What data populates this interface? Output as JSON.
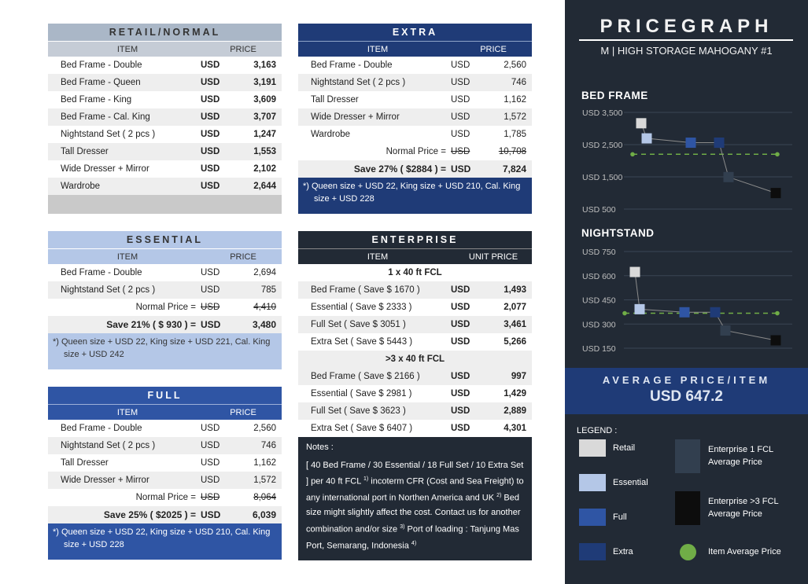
{
  "currency": "USD",
  "col_item": "ITEM",
  "col_price": "PRICE",
  "col_unit_price": "UNIT PRICE",
  "retail": {
    "title": "RETAIL/NORMAL",
    "rows": [
      {
        "name": "Bed Frame - Double",
        "price": "3,163"
      },
      {
        "name": "Bed Frame - Queen",
        "price": "3,191"
      },
      {
        "name": "Bed Frame - King",
        "price": "3,609"
      },
      {
        "name": "Bed Frame - Cal. King",
        "price": "3,707"
      },
      {
        "name": "Nightstand Set ( 2 pcs )",
        "price": "1,247"
      },
      {
        "name": "Tall Dresser",
        "price": "1,553"
      },
      {
        "name": "Wide Dresser + Mirror",
        "price": "2,102"
      },
      {
        "name": "Wardrobe",
        "price": "2,644"
      }
    ]
  },
  "extra": {
    "title": "EXTRA",
    "rows": [
      {
        "name": "Bed Frame - Double",
        "price": "2,560"
      },
      {
        "name": "Nightstand Set ( 2 pcs )",
        "price": "746"
      },
      {
        "name": "Tall Dresser",
        "price": "1,162"
      },
      {
        "name": "Wide Dresser + Mirror",
        "price": "1,572"
      },
      {
        "name": "Wardrobe",
        "price": "1,785"
      }
    ],
    "normal_label": "Normal Price =",
    "normal_value": "10,708",
    "save_label": "Save 27%  ( $2884 ) =",
    "save_value": "7,824",
    "note": "*) Queen size + USD 22, King size + USD 210, Cal. King size + USD 228"
  },
  "essential": {
    "title": "ESSENTIAL",
    "rows": [
      {
        "name": "Bed Frame - Double",
        "price": "2,694"
      },
      {
        "name": "Nightstand Set ( 2 pcs )",
        "price": "785"
      }
    ],
    "normal_label": "Normal Price =",
    "normal_value": "4,410",
    "save_label": "Save 21%  ( $ 930 ) =",
    "save_value": "3,480",
    "note": "*) Queen size + USD 22, King size + USD 221, Cal. King size + USD 242"
  },
  "full": {
    "title": "FULL",
    "rows": [
      {
        "name": "Bed Frame - Double",
        "price": "2,560"
      },
      {
        "name": "Nightstand Set ( 2 pcs )",
        "price": "746"
      },
      {
        "name": "Tall Dresser",
        "price": "1,162"
      },
      {
        "name": "Wide Dresser + Mirror",
        "price": "1,572"
      }
    ],
    "normal_label": "Normal Price =",
    "normal_value": "8,064",
    "save_label": "Save 25%  ( $2025 ) =",
    "save_value": "6,039",
    "note": "*) Queen size + USD 22, King size + USD 210, Cal. King size + USD 228"
  },
  "enterprise": {
    "title": "ENTERPRISE",
    "group1_title": "1 x 40 ft FCL",
    "group1": [
      {
        "name": "Bed Frame ( Save $ 1670 )",
        "price": "1,493"
      },
      {
        "name": "Essential ( Save $ 2333 )",
        "price": "2,077"
      },
      {
        "name": "Full Set ( Save $ 3051 )",
        "price": "3,461"
      },
      {
        "name": "Extra Set ( Save $ 5443 )",
        "price": "5,266"
      }
    ],
    "group2_title": ">3 x 40 ft FCL",
    "group2": [
      {
        "name": "Bed Frame ( Save $ 2166 )",
        "price": "997"
      },
      {
        "name": "Essential ( Save $ 2981 )",
        "price": "1,429"
      },
      {
        "name": "Full Set ( Save $ 3623 )",
        "price": "2,889"
      },
      {
        "name": "Extra Set ( Save $ 6407 )",
        "price": "4,301"
      }
    ],
    "notes_title": "Notes :",
    "notes_p1": "[ 40 Bed Frame / 30 Essential / 18 Full Set / 10 Extra Set ] per 40 ft FCL",
    "notes_s1": "1)",
    "notes_p2": " incoterm CFR (Cost and Sea Freight) to any international  port in Northen America and UK",
    "notes_s2": "2)",
    "notes_p3": " Bed size might slightly affect the cost. Contact us  for another combination  and/or size",
    "notes_s3": "3)",
    "notes_p4": " Port of loading  : Tanjung Mas Port, Semarang, Indonesia",
    "notes_s4": "4)"
  },
  "brand": {
    "title": "PRICEGRAPH",
    "subtitle": "M | HIGH STORAGE MAHOGANY #1"
  },
  "average": {
    "label": "AVERAGE  PRICE/ITEM",
    "value": "USD 647.2"
  },
  "legend": {
    "title": "LEGEND :",
    "items": [
      {
        "label": "Retail",
        "color": "#d9d9d9"
      },
      {
        "label": "Essential",
        "color": "#b4c7e7"
      },
      {
        "label": "Full",
        "color": "#2f55a4"
      },
      {
        "label": "Extra",
        "color": "#1f3b77"
      },
      {
        "label": "Enterprise 1 FCL Average Price",
        "color": "#323f4f"
      },
      {
        "label": "Enterprise >3 FCL Average Price",
        "color": "#0d0d0d"
      },
      {
        "label": "Item Average Price",
        "color": "#70ad47"
      }
    ]
  },
  "chart_data": [
    {
      "type": "line",
      "title": "BED FRAME",
      "x": [
        "Retail",
        "Retail",
        "Essential",
        "Full",
        "Extra",
        "Enterprise 1 FCL",
        "Enterprise >3 FCL"
      ],
      "values": [
        3163,
        2694,
        2560,
        2560,
        2560,
        1493,
        997
      ],
      "average": 2200,
      "y_ticks": [
        "USD 3,500",
        "USD 2,500",
        "USD 1,500",
        "USD 500"
      ],
      "ylim": [
        500,
        3500
      ],
      "colors": [
        "#d9d9d9",
        "#b4c7e7",
        "#2f55a4",
        "#2f55a4",
        "#1f3b77",
        "#323f4f",
        "#0d0d0d"
      ],
      "grid": true
    },
    {
      "type": "line",
      "title": "NIGHTSTAND",
      "x": [
        "Retail",
        "Essential",
        "Full",
        "Extra",
        "Enterprise 1 FCL",
        "Enterprise >3 FCL"
      ],
      "values": [
        623,
        392,
        373,
        373,
        260,
        199
      ],
      "average": 367,
      "y_ticks": [
        "USD 750",
        "USD 600",
        "USD 450",
        "USD 300",
        "USD 150"
      ],
      "ylim": [
        150,
        750
      ],
      "colors": [
        "#d9d9d9",
        "#b4c7e7",
        "#2f55a4",
        "#1f3b77",
        "#323f4f",
        "#0d0d0d"
      ],
      "grid": true
    }
  ]
}
